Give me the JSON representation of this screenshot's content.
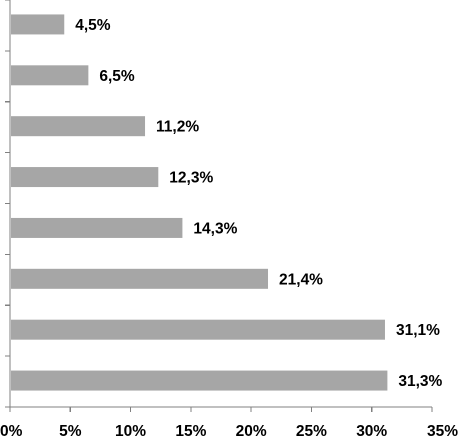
{
  "chart_data": {
    "type": "bar",
    "orientation": "horizontal",
    "values": [
      4.5,
      6.5,
      11.2,
      12.3,
      14.3,
      21.4,
      31.1,
      31.3
    ],
    "data_labels": [
      "4,5%",
      "6,5%",
      "11,2%",
      "12,3%",
      "14,3%",
      "21,4%",
      "31,1%",
      "31,3%"
    ],
    "xlim": [
      0,
      35
    ],
    "x_ticks": [
      0,
      5,
      10,
      15,
      20,
      25,
      30,
      35
    ],
    "x_tick_labels": [
      "0%",
      "5%",
      "10%",
      "15%",
      "20%",
      "25%",
      "30%",
      "35%"
    ],
    "bar_color": "#a6a6a6",
    "grid": false,
    "legend": "none"
  }
}
